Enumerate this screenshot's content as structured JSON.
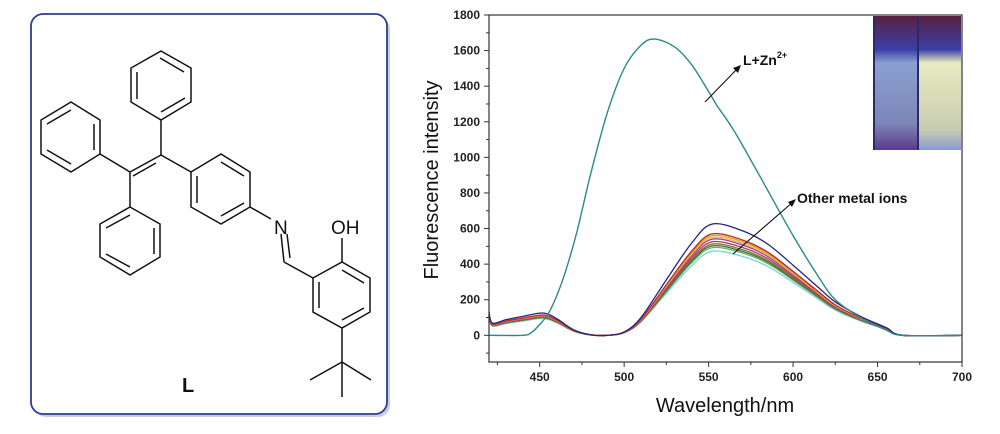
{
  "structure": {
    "compound_label": "L",
    "atom_labels": {
      "nitrogen": "N",
      "hydroxyl": "OH"
    }
  },
  "chart_data": {
    "type": "line",
    "xlabel": "Wavelength/nm",
    "ylabel": "Fluorescence intensity",
    "xlim": [
      420,
      700
    ],
    "ylim": [
      -150,
      1800
    ],
    "xticks": [
      450,
      500,
      550,
      600,
      650,
      700
    ],
    "yticks": [
      0,
      200,
      400,
      600,
      800,
      1000,
      1200,
      1400,
      1600,
      1800
    ],
    "grid": false,
    "annotations": [
      {
        "text": "L+Zn",
        "sup": "2+",
        "target": "L+Zn2+"
      },
      {
        "text": "Other metal ions",
        "target": "other ions"
      }
    ],
    "zn_series": {
      "name": "L+Zn2+",
      "color": "#2b8a8c",
      "x": [
        420,
        440,
        445,
        450,
        455,
        460,
        465,
        472,
        480,
        490,
        500,
        510,
        518,
        530,
        540,
        550,
        555,
        565,
        580,
        600,
        615,
        625,
        640,
        655,
        665,
        700
      ],
      "y": [
        0,
        0,
        15,
        60,
        120,
        220,
        350,
        580,
        900,
        1250,
        1500,
        1630,
        1665,
        1620,
        1520,
        1370,
        1290,
        1150,
        900,
        560,
        330,
        200,
        100,
        30,
        0,
        0
      ]
    },
    "other_ions_profile": {
      "x": [
        420,
        422,
        430,
        440,
        452,
        460,
        470,
        480,
        490,
        500,
        510,
        525,
        540,
        552,
        570,
        585,
        600,
        615,
        625,
        640,
        655,
        665,
        700
      ],
      "relative": [
        0.21,
        0.11,
        0.14,
        0.17,
        0.2,
        0.15,
        0.05,
        0.005,
        0,
        0.03,
        0.16,
        0.5,
        0.83,
        1.0,
        0.94,
        0.82,
        0.63,
        0.43,
        0.3,
        0.17,
        0.07,
        0,
        0
      ]
    },
    "other_ions_series": [
      {
        "peak": 625,
        "color": "#22228a"
      },
      {
        "peak": 570,
        "color": "#c0262a"
      },
      {
        "peak": 560,
        "color": "#e8962a"
      },
      {
        "peak": 550,
        "color": "#d8c430"
      },
      {
        "peak": 540,
        "color": "#9b3fa0"
      },
      {
        "peak": 525,
        "color": "#c03070"
      },
      {
        "peak": 512,
        "color": "#7a7a22"
      },
      {
        "peak": 502,
        "color": "#2f7a3a"
      },
      {
        "peak": 492,
        "color": "#6ab06a"
      },
      {
        "peak": 472,
        "color": "#7fcfd8"
      }
    ]
  }
}
